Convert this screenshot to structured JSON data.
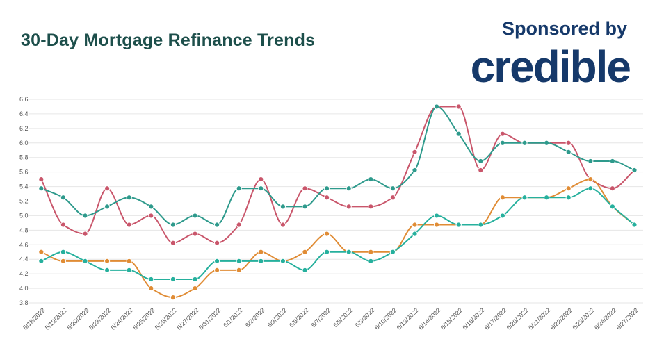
{
  "header": {
    "title": "30-Day Mortgage Refinance Trends",
    "sponsor_text": "Sponsored by",
    "brand_logo_text": "credible"
  },
  "colors": {
    "title": "#1d4f4b",
    "brand": "#16396a"
  },
  "chart_data": {
    "type": "line",
    "title": "30-Day Mortgage Refinance Trends",
    "xlabel": "",
    "ylabel": "",
    "ylim": [
      3.8,
      6.6
    ],
    "yticks": [
      "3.8",
      "4.0",
      "4.2",
      "4.4",
      "4.6",
      "4.8",
      "5.0",
      "5.2",
      "5.4",
      "5.6",
      "5.8",
      "6.0",
      "6.2",
      "6.4",
      "6.6"
    ],
    "grid": true,
    "smooth": true,
    "categories": [
      "5/18/2022",
      "5/19/2022",
      "5/20/2022",
      "5/23/2022",
      "5/24/2022",
      "5/25/2022",
      "5/26/2022",
      "5/27/2022",
      "5/31/2022",
      "6/1/2022",
      "6/2/2022",
      "6/3/2022",
      "6/6/2022",
      "6/7/2022",
      "6/8/2022",
      "6/9/2022",
      "6/10/2022",
      "6/13/2022",
      "6/14/2022",
      "6/15/2022",
      "6/16/2022",
      "6/17/2022",
      "6/20/2022",
      "6/21/2022",
      "6/22/2022",
      "6/23/2022",
      "6/24/2022",
      "6/27/2022"
    ],
    "series": [
      {
        "color": "#c9566b",
        "values": [
          5.5,
          4.875,
          4.75,
          5.375,
          4.875,
          5.0,
          4.625,
          4.75,
          4.625,
          4.875,
          5.5,
          4.875,
          5.375,
          5.25,
          5.125,
          5.125,
          5.25,
          5.875,
          6.5,
          6.5,
          5.625,
          6.125,
          6.0,
          6.0,
          6.0,
          5.5,
          5.375,
          5.625
        ]
      },
      {
        "color": "#2e9a8c",
        "values": [
          5.375,
          5.25,
          5.0,
          5.125,
          5.25,
          5.125,
          4.875,
          5.0,
          4.875,
          5.375,
          5.375,
          5.125,
          5.125,
          5.375,
          5.375,
          5.5,
          5.375,
          5.625,
          6.5,
          6.125,
          5.75,
          6.0,
          6.0,
          6.0,
          5.875,
          5.75,
          5.75,
          5.625
        ]
      },
      {
        "color": "#e08c35",
        "values": [
          4.5,
          4.375,
          4.375,
          4.375,
          4.375,
          4.0,
          3.875,
          4.0,
          4.25,
          4.25,
          4.5,
          4.375,
          4.5,
          4.75,
          4.5,
          4.5,
          4.5,
          4.875,
          4.875,
          4.875,
          4.875,
          5.25,
          5.25,
          5.25,
          5.375,
          5.5,
          5.125,
          4.875
        ]
      },
      {
        "color": "#26b09d",
        "values": [
          4.375,
          4.5,
          4.375,
          4.25,
          4.25,
          4.125,
          4.125,
          4.125,
          4.375,
          4.375,
          4.375,
          4.375,
          4.25,
          4.5,
          4.5,
          4.375,
          4.5,
          4.75,
          5.0,
          4.875,
          4.875,
          5.0,
          5.25,
          5.25,
          5.25,
          5.375,
          5.125,
          4.875
        ]
      }
    ]
  }
}
